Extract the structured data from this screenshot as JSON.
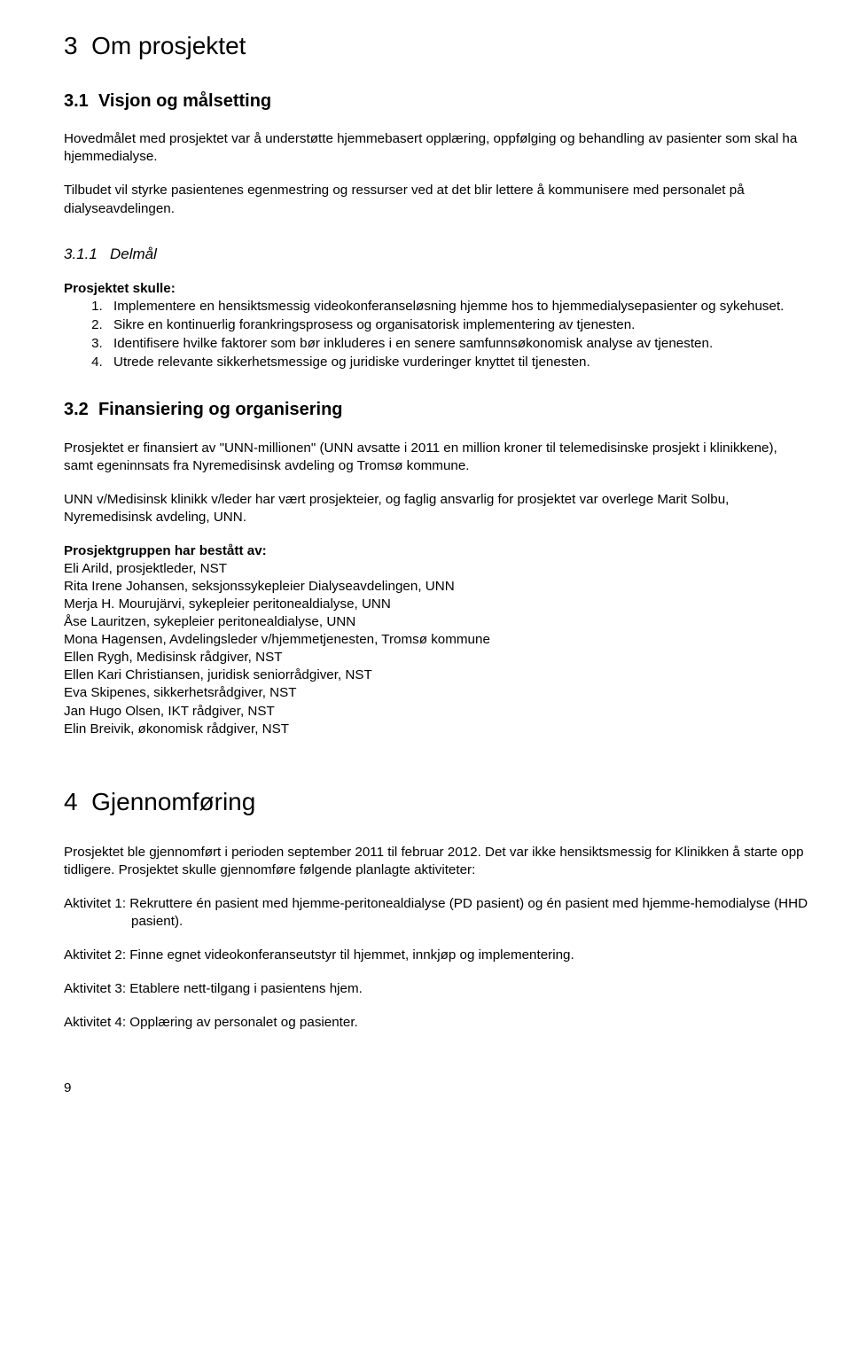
{
  "s3": {
    "num": "3",
    "title": "Om prosjektet",
    "s31": {
      "num": "3.1",
      "title": "Visjon og målsetting",
      "p1": "Hovedmålet med prosjektet var å understøtte hjemmebasert opplæring, oppfølging og behandling av pasienter som skal ha hjemmedialyse.",
      "p2": "Tilbudet vil styrke pasientenes egenmestring og ressurser ved at det blir lettere å kommunisere med personalet på dialyseavdelingen.",
      "s311": {
        "num": "3.1.1",
        "title": "Delmål",
        "lead": "Prosjektet skulle:",
        "items": [
          "Implementere en hensiktsmessig videokonferanseløsning hjemme hos to hjemmedialysepasienter og sykehuset.",
          "Sikre en kontinuerlig forankringsprosess og organisatorisk implementering av tjenesten.",
          "Identifisere hvilke faktorer som bør inkluderes i en senere samfunnsøkonomisk analyse av tjenesten.",
          "Utrede relevante sikkerhetsmessige og juridiske vurderinger knyttet til tjenesten."
        ]
      }
    },
    "s32": {
      "num": "3.2",
      "title": "Finansiering og organisering",
      "p1": "Prosjektet er finansiert av \"UNN-millionen\" (UNN avsatte i 2011 en million kroner til telemedisinske prosjekt i klinikkene), samt egeninnsats fra Nyremedisinsk avdeling og Tromsø kommune.",
      "p2": "UNN v/Medisinsk klinikk v/leder har vært prosjekteier, og faglig ansvarlig for prosjektet var overlege Marit Solbu, Nyremedisinsk avdeling, UNN.",
      "group_lead": "Prosjektgruppen har bestått av:",
      "members": [
        "Eli Arild, prosjektleder, NST",
        "Rita Irene Johansen, seksjonssykepleier Dialyseavdelingen, UNN",
        "Merja H. Mourujärvi, sykepleier peritonealdialyse, UNN",
        "Åse Lauritzen, sykepleier peritonealdialyse, UNN",
        "Mona Hagensen, Avdelingsleder v/hjemmetjenesten, Tromsø kommune",
        "Ellen Rygh, Medisinsk rådgiver, NST",
        "Ellen Kari Christiansen, juridisk seniorrådgiver, NST",
        "Eva Skipenes, sikkerhetsrådgiver, NST",
        "Jan Hugo Olsen, IKT rådgiver, NST",
        "Elin Breivik, økonomisk rådgiver, NST"
      ]
    }
  },
  "s4": {
    "num": "4",
    "title": "Gjennomføring",
    "p1": "Prosjektet ble gjennomført i perioden september 2011 til februar 2012. Det var ikke hensiktsmessig for Klinikken å starte opp tidligere. Prosjektet skulle gjennomføre følgende planlagte aktiviteter:",
    "activities": [
      "Aktivitet 1: Rekruttere én pasient med hjemme-peritonealdialyse (PD pasient) og én pasient med hjemme-hemodialyse (HHD pasient).",
      "Aktivitet 2: Finne egnet videokonferanseutstyr til hjemmet, innkjøp og implementering.",
      "Aktivitet 3: Etablere nett-tilgang i pasientens hjem.",
      "Aktivitet 4: Opplæring av personalet og pasienter."
    ]
  },
  "page_number": "9"
}
